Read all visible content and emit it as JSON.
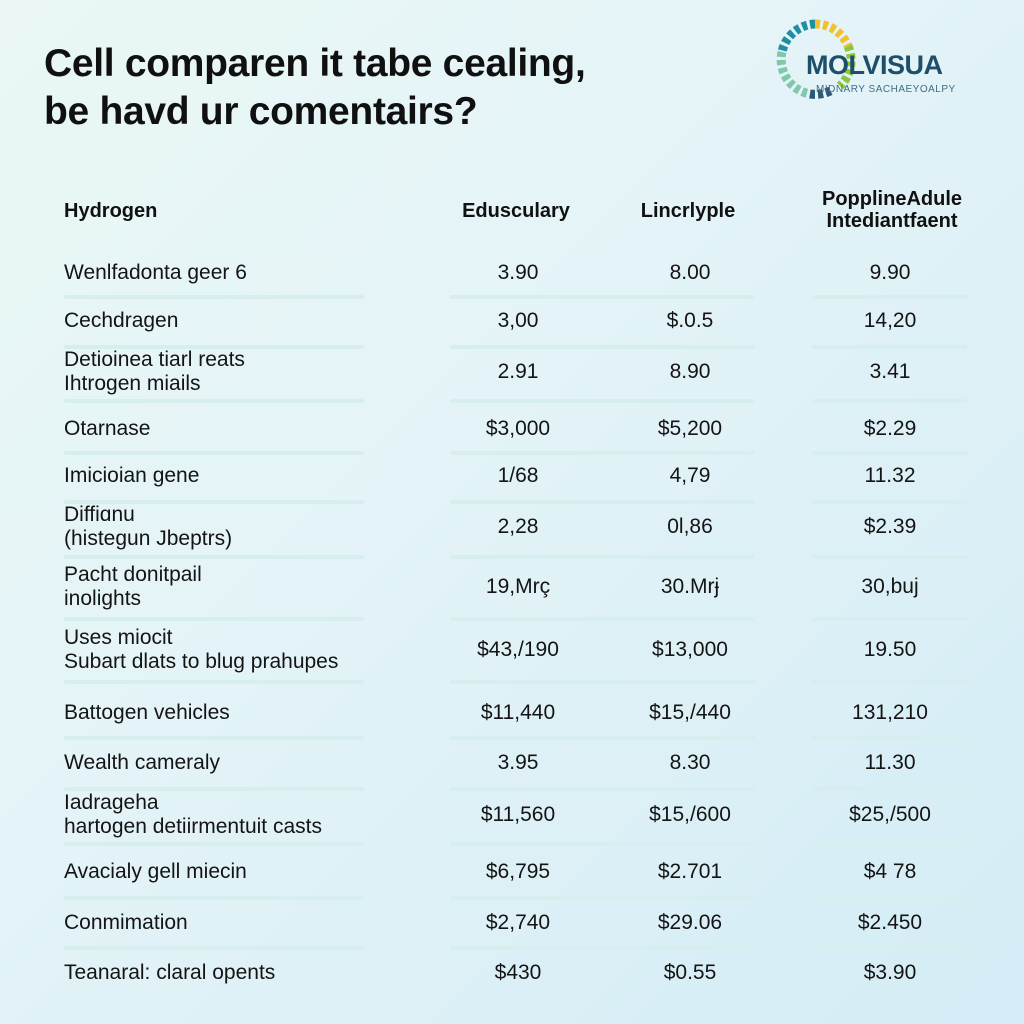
{
  "title": {
    "line1": "Cell comparen it tabe cealing,",
    "line2": "be havd ur comentairs?"
  },
  "logo": {
    "name": "MOLVISUA",
    "tagline": "MIDNARY SACHAEYOALPY",
    "colors": [
      "#1e8fa0",
      "#8cc63f",
      "#f2c12e",
      "#2b5876"
    ]
  },
  "table": {
    "headers": {
      "label": "Hydrogen",
      "col1": "Eduscularу",
      "col2": "Lincrlyple",
      "col3_line1": "PopplineAdule",
      "col3_line2": "Intediantfaent"
    },
    "rows": [
      {
        "label": [
          "Wenlfadonta geer 6"
        ],
        "c1": "3.90",
        "c2": "8.00",
        "c3": "9.90"
      },
      {
        "label": [
          "Cechdragen"
        ],
        "c1": "3,00",
        "c2": "$.0.5",
        "c3": "14,20"
      },
      {
        "label": [
          "Detioinea tiarl reats",
          "Ihtrogen miails"
        ],
        "c1": "2.91",
        "c2": "8.90",
        "c3": "3.41"
      },
      {
        "label": [
          "Otarnase"
        ],
        "c1": "$3,000",
        "c2": "$5,200",
        "c3": "$2.29"
      },
      {
        "label": [
          "Imicioian gene"
        ],
        "c1": "1/68",
        "c2": "4,79",
        "c3": "11.32"
      },
      {
        "label": [
          "Diffiɑnu",
          "(histegun Jbeptrs)"
        ],
        "c1": "2,28",
        "c2": "0l,86",
        "c3": "$2.39"
      },
      {
        "label": [
          "Pacht donitpail",
          "inolights"
        ],
        "c1": "19,Mrç",
        "c2": "30.Mrɉ",
        "c3": "30,buj"
      },
      {
        "label": [
          "Uses miocit",
          "Subart dlats to blug prahupes"
        ],
        "c1": "$43,/190",
        "c2": "$13,000",
        "c3": "19.50"
      },
      {
        "label": [
          "Battogen vehicles"
        ],
        "c1": "$11,440",
        "c2": "$15,/440",
        "c3": "131,210"
      },
      {
        "label": [
          "Wealth cameraly"
        ],
        "c1": "3.95",
        "c2": "8.30",
        "c3": "11.30"
      },
      {
        "label": [
          "Iadragehа",
          "hartogen detiirmentuit casts"
        ],
        "c1": "$11,560",
        "c2": "$15,/600",
        "c3": "$25,/500"
      },
      {
        "label": [
          "Avacialy gell miecin"
        ],
        "c1": "$6,795",
        "c2": "$2.701",
        "c3": "$4 78"
      },
      {
        "label": [
          "Conmimation"
        ],
        "c1": "$2,740",
        "c2": "$29.06",
        "c3": "$2.450"
      },
      {
        "label": [
          "Teanaral: claral opents"
        ],
        "c1": "$430",
        "c2": "$0.55",
        "c3": "$3.90"
      }
    ]
  }
}
